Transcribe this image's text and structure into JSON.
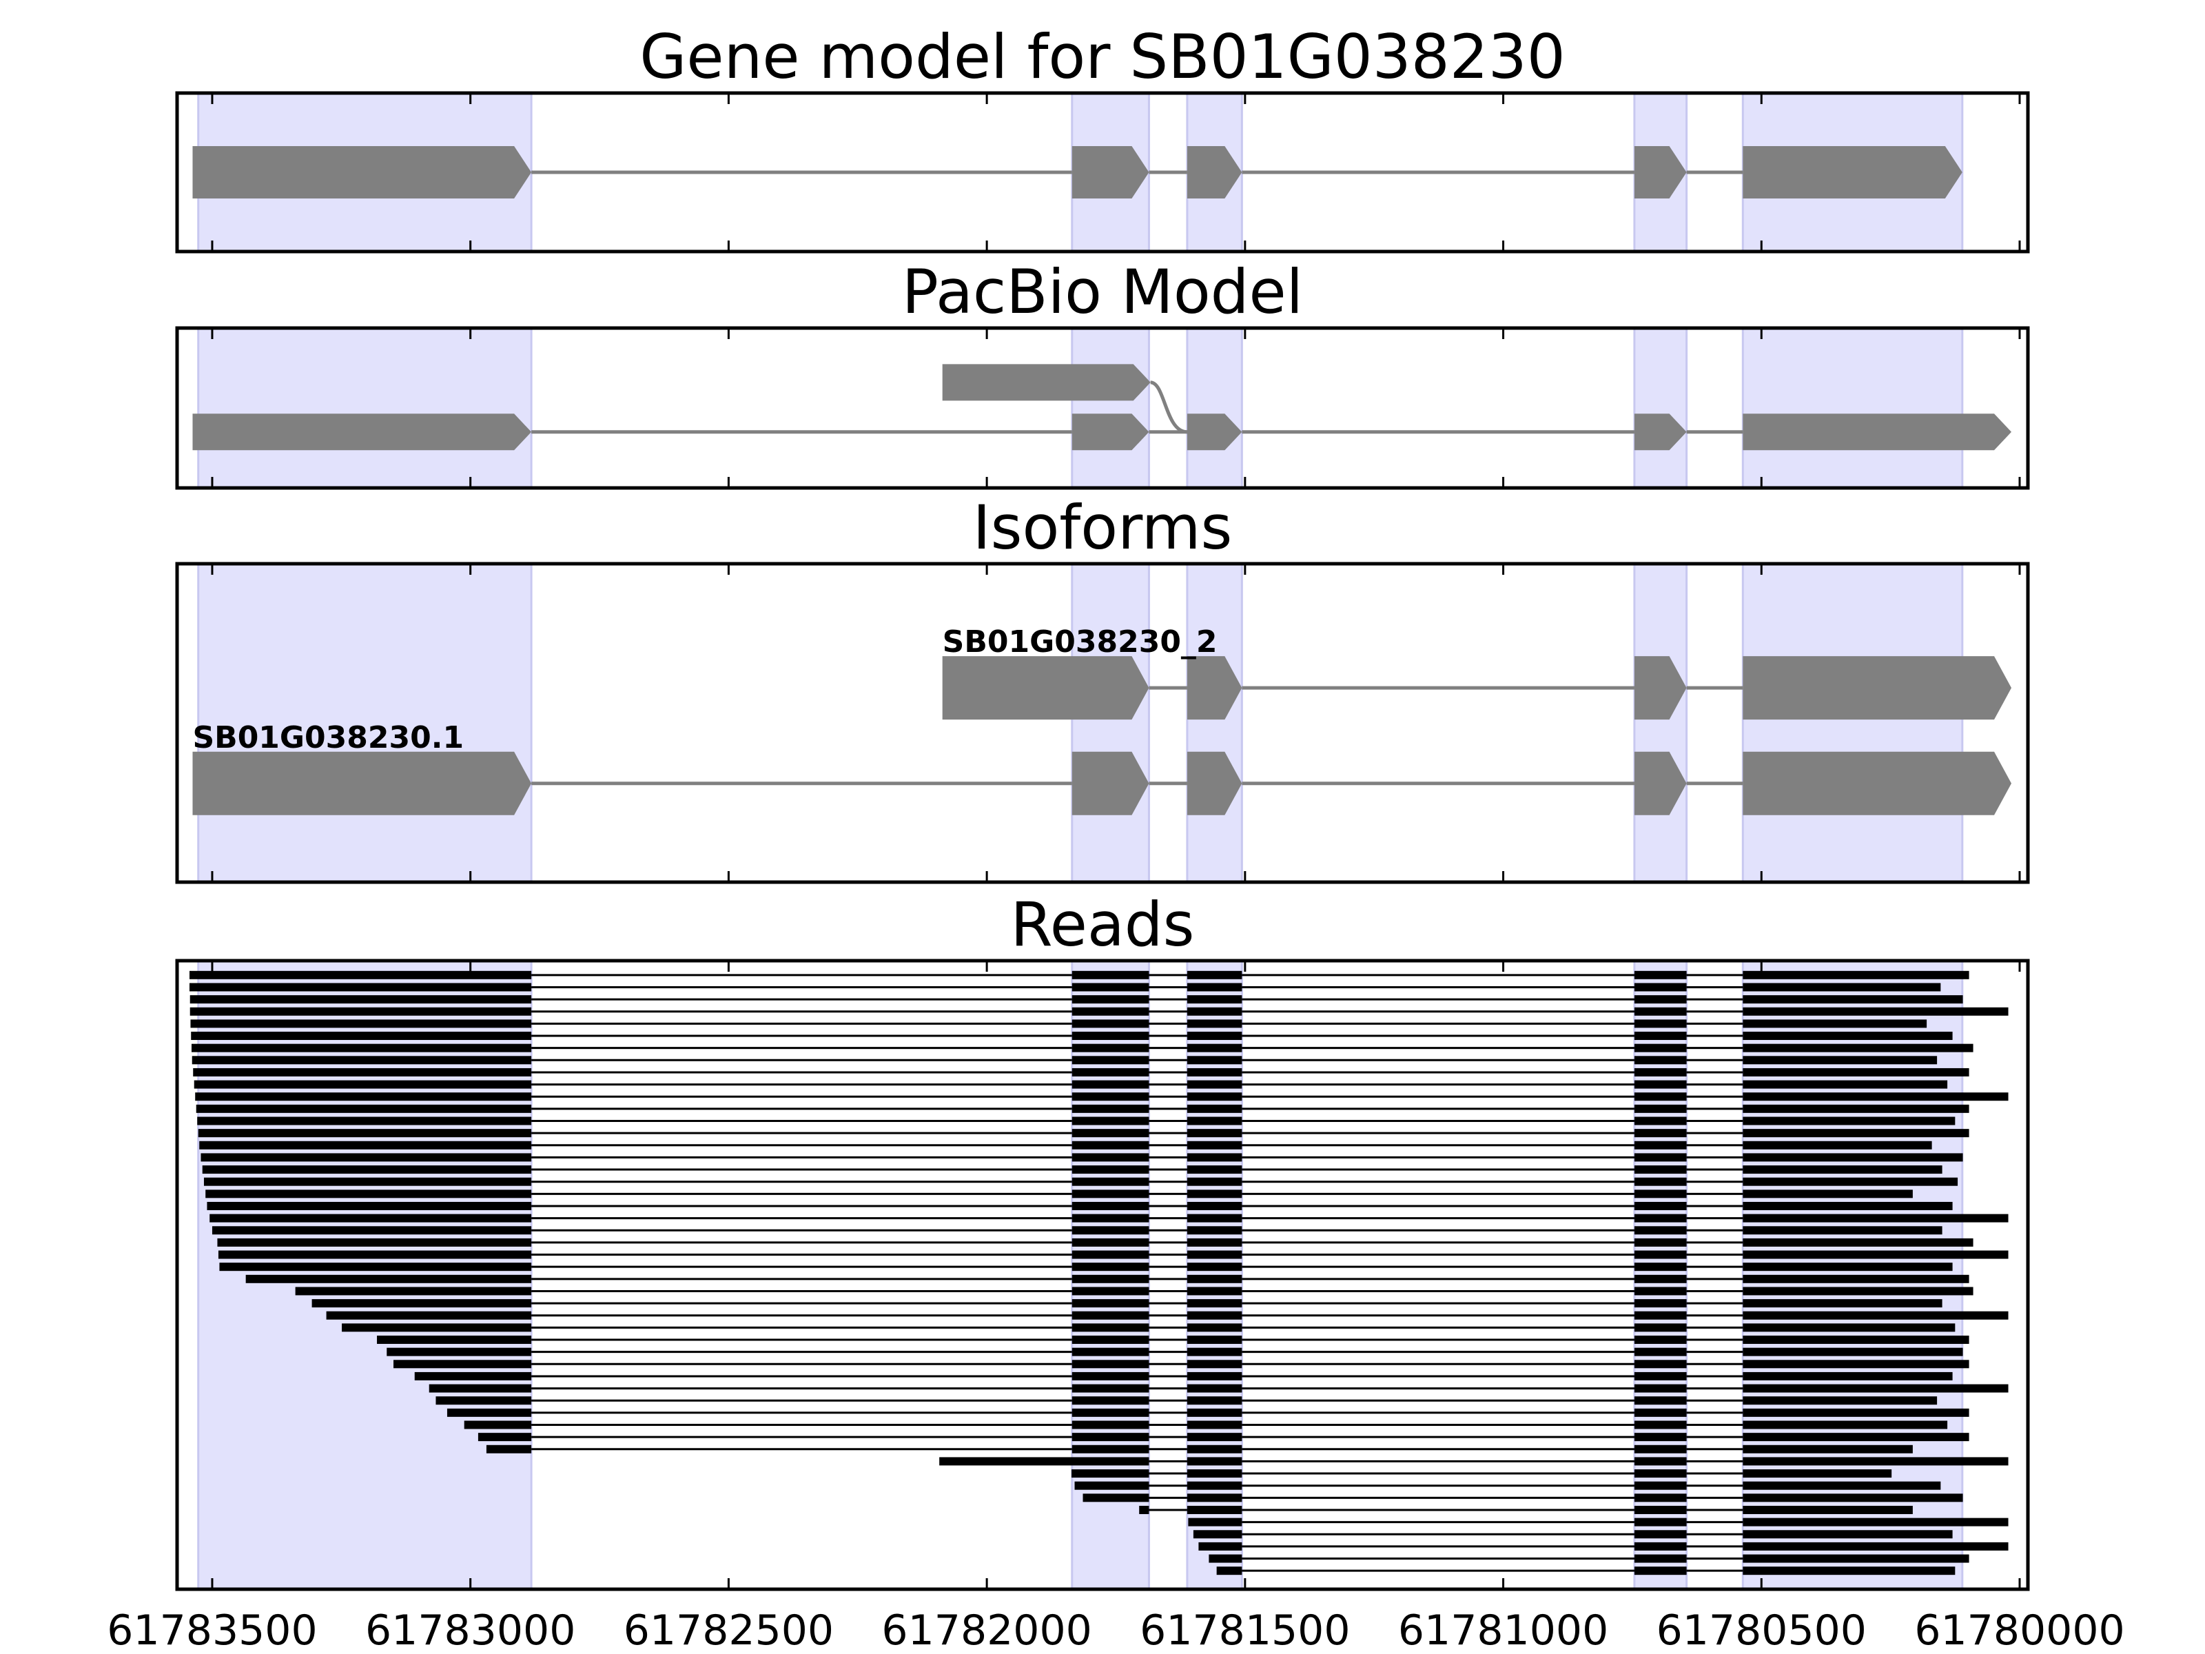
{
  "chart_data": [
    {
      "type": "gene",
      "title": "Gene model for SB01G038230",
      "xlim": [
        61783568,
        61779984
      ],
      "xticks": [
        61783500,
        61783000,
        61782500,
        61782000,
        61781500,
        61781000,
        61780500,
        61780000
      ],
      "highlight": [
        [
          61783527,
          61782882
        ],
        [
          61781835,
          61781686
        ],
        [
          61781612,
          61781506
        ],
        [
          61780746,
          61780645
        ],
        [
          61780536,
          61780111
        ]
      ],
      "highlight_color": "#e2e2fc",
      "color": "#808080",
      "transcripts": [
        {
          "exons": [
            [
              61783538,
              61782882
            ],
            [
              61781835,
              61781686
            ],
            [
              61781612,
              61781506
            ],
            [
              61780746,
              61780645
            ],
            [
              61780536,
              61780111
            ]
          ]
        }
      ]
    },
    {
      "type": "pacbio",
      "title": "PacBio Model",
      "xlim": [
        61783568,
        61779984
      ],
      "xticks": [
        61783500,
        61783000,
        61782500,
        61782000,
        61781500,
        61781000,
        61780500,
        61780000
      ],
      "highlight": [
        [
          61783527,
          61782882
        ],
        [
          61781835,
          61781686
        ],
        [
          61781612,
          61781506
        ],
        [
          61780746,
          61780645
        ],
        [
          61780536,
          61780111
        ]
      ],
      "highlight_color": "#e2e2fc",
      "color": "#808080",
      "transcripts": [
        {
          "exons": [
            [
              61783538,
              61782882
            ],
            [
              61781835,
              61781686
            ],
            [
              61781612,
              61781506
            ],
            [
              61780746,
              61780645
            ],
            [
              61780536,
              61780016
            ]
          ]
        },
        {
          "exons": [
            [
              61782086,
              61781683
            ]
          ]
        }
      ]
    },
    {
      "type": "isoforms",
      "title": "Isoforms",
      "xlim": [
        61783568,
        61779984
      ],
      "xticks": [
        61783500,
        61783000,
        61782500,
        61782000,
        61781500,
        61781000,
        61780500,
        61780000
      ],
      "highlight": [
        [
          61783527,
          61782882
        ],
        [
          61781835,
          61781686
        ],
        [
          61781612,
          61781506
        ],
        [
          61780746,
          61780645
        ],
        [
          61780536,
          61780111
        ]
      ],
      "highlight_color": "#e2e2fc",
      "color": "#808080",
      "transcripts": [
        {
          "name": "SB01G038230.1",
          "exons": [
            [
              61783538,
              61782882
            ],
            [
              61781835,
              61781686
            ],
            [
              61781612,
              61781506
            ],
            [
              61780746,
              61780645
            ],
            [
              61780536,
              61780016
            ]
          ]
        },
        {
          "name": "SB01G038230_2",
          "exons": [
            [
              61782086,
              61781686
            ],
            [
              61781612,
              61781506
            ],
            [
              61780746,
              61780645
            ],
            [
              61780536,
              61780016
            ]
          ]
        }
      ]
    },
    {
      "type": "reads",
      "title": "Reads",
      "tick_labels": true,
      "xlim": [
        61783568,
        61779984
      ],
      "xticks": [
        61783500,
        61783000,
        61782500,
        61782000,
        61781500,
        61781000,
        61780500,
        61780000
      ],
      "highlight": [
        [
          61783527,
          61782882
        ],
        [
          61781835,
          61781686
        ],
        [
          61781612,
          61781506
        ],
        [
          61780746,
          61780645
        ],
        [
          61780536,
          61780111
        ]
      ],
      "highlight_color": "#e2e2fc",
      "color": "#000000",
      "exons": [
        [
          61783538,
          61782882
        ],
        [
          61781835,
          61781686
        ],
        [
          61781612,
          61781506
        ],
        [
          61780746,
          61780645
        ],
        [
          61780536,
          61780016
        ]
      ],
      "reads": [
        {
          "start": 61783544,
          "end": 61780098
        },
        {
          "start": 61783544,
          "end": 61780153
        },
        {
          "start": 61783543,
          "end": 61780110
        },
        {
          "start": 61783543,
          "end": 61780022
        },
        {
          "start": 61783542,
          "end": 61780180
        },
        {
          "start": 61783541,
          "end": 61780130
        },
        {
          "start": 61783540,
          "end": 61780090
        },
        {
          "start": 61783539,
          "end": 61780160
        },
        {
          "start": 61783537,
          "end": 61780098
        },
        {
          "start": 61783535,
          "end": 61780140
        },
        {
          "start": 61783533,
          "end": 61780022
        },
        {
          "start": 61783531,
          "end": 61780098
        },
        {
          "start": 61783529,
          "end": 61780125
        },
        {
          "start": 61783527,
          "end": 61780098
        },
        {
          "start": 61783525,
          "end": 61780170
        },
        {
          "start": 61783522,
          "end": 61780110
        },
        {
          "start": 61783519,
          "end": 61780150
        },
        {
          "start": 61783516,
          "end": 61780120
        },
        {
          "start": 61783513,
          "end": 61780207
        },
        {
          "start": 61783510,
          "end": 61780130
        },
        {
          "start": 61783505,
          "end": 61780022
        },
        {
          "start": 61783500,
          "end": 61780150
        },
        {
          "start": 61783490,
          "end": 61780090
        },
        {
          "start": 61783488,
          "end": 61780022
        },
        {
          "start": 61783486,
          "end": 61780130
        },
        {
          "start": 61783435,
          "end": 61780098
        },
        {
          "start": 61783339,
          "end": 61780090
        },
        {
          "start": 61783307,
          "end": 61780150
        },
        {
          "start": 61783279,
          "end": 61780022
        },
        {
          "start": 61783249,
          "end": 61780125
        },
        {
          "start": 61783181,
          "end": 61780098
        },
        {
          "start": 61783162,
          "end": 61780110
        },
        {
          "start": 61783149,
          "end": 61780098
        },
        {
          "start": 61783108,
          "end": 61780130
        },
        {
          "start": 61783080,
          "end": 61780022
        },
        {
          "start": 61783067,
          "end": 61780160
        },
        {
          "start": 61783045,
          "end": 61780098
        },
        {
          "start": 61783012,
          "end": 61780140
        },
        {
          "start": 61782985,
          "end": 61780098
        },
        {
          "start": 61782969,
          "end": 61780207
        },
        {
          "start": 61782092,
          "end": 61780022
        },
        {
          "start": 61781836,
          "end": 61780248
        },
        {
          "start": 61781830,
          "end": 61780153
        },
        {
          "start": 61781814,
          "end": 61780110
        },
        {
          "start": 61781705,
          "end": 61780207
        },
        {
          "start": 61781610,
          "end": 61780022
        },
        {
          "start": 61781600,
          "end": 61780130
        },
        {
          "start": 61781590,
          "end": 61780022
        },
        {
          "start": 61781570,
          "end": 61780098
        },
        {
          "start": 61781555,
          "end": 61780125
        }
      ]
    }
  ]
}
